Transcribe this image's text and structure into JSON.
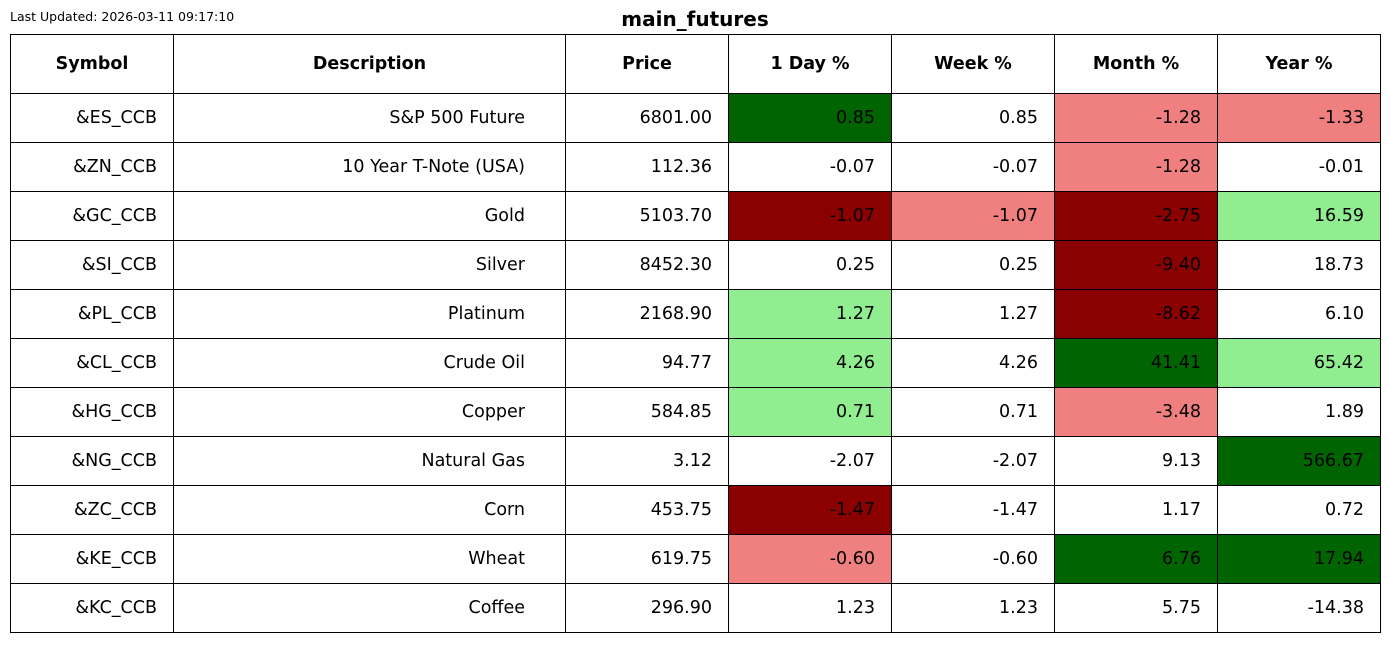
{
  "last_updated": "Last Updated: 2026-03-11 09:17:10",
  "title": "main_futures",
  "colors": {
    "strong_up": "#006400",
    "up": "#90ee90",
    "down": "#f08080",
    "strong_down": "#8b0000",
    "neutral": "#ffffff"
  },
  "chart_data": {
    "type": "table",
    "title": "main_futures",
    "columns": [
      "Symbol",
      "Description",
      "Price",
      "1 Day %",
      "Week %",
      "Month %",
      "Year %"
    ],
    "rows": [
      {
        "cells": [
          "&ES_CCB",
          "S&P 500 Future",
          "6801.00",
          "0.85",
          "0.85",
          "-1.28",
          "-1.33"
        ],
        "shade": [
          null,
          null,
          null,
          "strong_up",
          null,
          "down",
          "down"
        ]
      },
      {
        "cells": [
          "&ZN_CCB",
          "10 Year T-Note (USA)",
          "112.36",
          "-0.07",
          "-0.07",
          "-1.28",
          "-0.01"
        ],
        "shade": [
          null,
          null,
          null,
          null,
          null,
          "down",
          null
        ]
      },
      {
        "cells": [
          "&GC_CCB",
          "Gold",
          "5103.70",
          "-1.07",
          "-1.07",
          "-2.75",
          "16.59"
        ],
        "shade": [
          null,
          null,
          null,
          "strong_down",
          "down",
          "strong_down",
          "up"
        ]
      },
      {
        "cells": [
          "&SI_CCB",
          "Silver",
          "8452.30",
          "0.25",
          "0.25",
          "-9.40",
          "18.73"
        ],
        "shade": [
          null,
          null,
          null,
          null,
          null,
          "strong_down",
          null
        ]
      },
      {
        "cells": [
          "&PL_CCB",
          "Platinum",
          "2168.90",
          "1.27",
          "1.27",
          "-8.62",
          "6.10"
        ],
        "shade": [
          null,
          null,
          null,
          "up",
          null,
          "strong_down",
          null
        ]
      },
      {
        "cells": [
          "&CL_CCB",
          "Crude Oil",
          "94.77",
          "4.26",
          "4.26",
          "41.41",
          "65.42"
        ],
        "shade": [
          null,
          null,
          null,
          "up",
          null,
          "strong_up",
          "up"
        ]
      },
      {
        "cells": [
          "&HG_CCB",
          "Copper",
          "584.85",
          "0.71",
          "0.71",
          "-3.48",
          "1.89"
        ],
        "shade": [
          null,
          null,
          null,
          "up",
          null,
          "down",
          null
        ]
      },
      {
        "cells": [
          "&NG_CCB",
          "Natural Gas",
          "3.12",
          "-2.07",
          "-2.07",
          "9.13",
          "566.67"
        ],
        "shade": [
          null,
          null,
          null,
          null,
          null,
          null,
          "strong_up"
        ]
      },
      {
        "cells": [
          "&ZC_CCB",
          "Corn",
          "453.75",
          "-1.47",
          "-1.47",
          "1.17",
          "0.72"
        ],
        "shade": [
          null,
          null,
          null,
          "strong_down",
          null,
          null,
          null
        ]
      },
      {
        "cells": [
          "&KE_CCB",
          "Wheat",
          "619.75",
          "-0.60",
          "-0.60",
          "6.76",
          "17.94"
        ],
        "shade": [
          null,
          null,
          null,
          "down",
          null,
          "strong_up",
          "strong_up"
        ]
      },
      {
        "cells": [
          "&KC_CCB",
          "Coffee",
          "296.90",
          "1.23",
          "1.23",
          "5.75",
          "-14.38"
        ],
        "shade": [
          null,
          null,
          null,
          null,
          null,
          null,
          null
        ]
      }
    ]
  }
}
